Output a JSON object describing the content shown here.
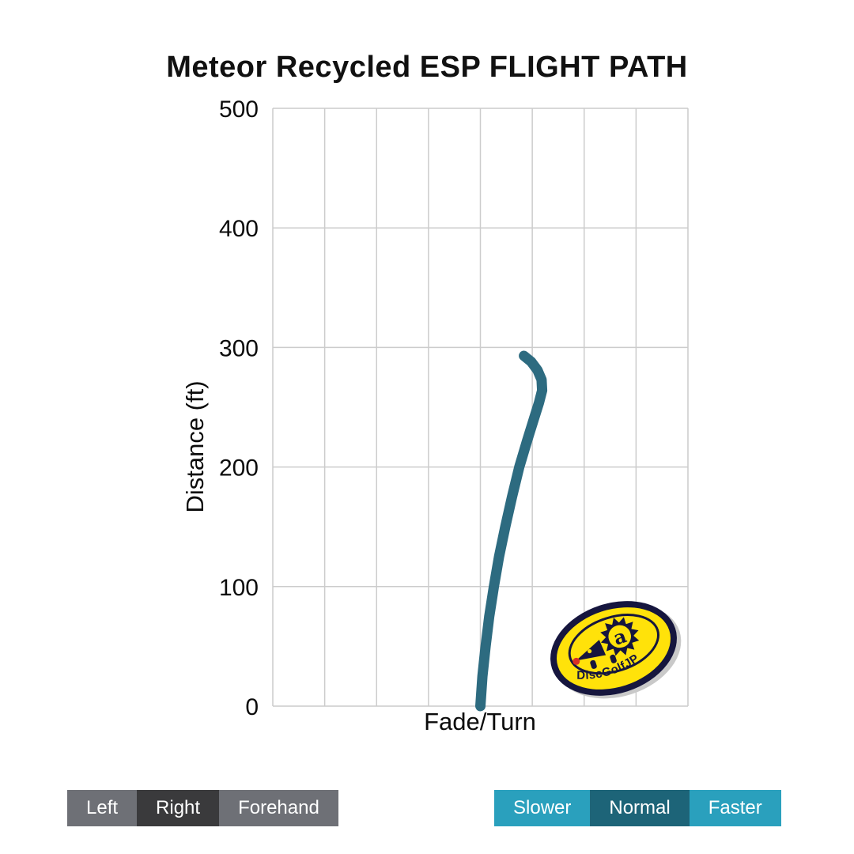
{
  "title": "Meteor Recycled ESP FLIGHT PATH",
  "chart_data": {
    "type": "line",
    "title": "Meteor Recycled ESP FLIGHT PATH",
    "xlabel": "Fade/Turn",
    "ylabel": "Distance (ft)",
    "xlim": [
      0,
      8
    ],
    "ylim": [
      0,
      500
    ],
    "yticks": [
      0,
      100,
      200,
      300,
      400,
      500
    ],
    "x_grid_step": 1,
    "grid": true,
    "legend_position": "none",
    "series": [
      {
        "name": "Meteor Recycled ESP flight path (Right hand, Normal speed)",
        "color": "#2d6b80",
        "points": [
          [
            4.0,
            0
          ],
          [
            4.04,
            25
          ],
          [
            4.1,
            50
          ],
          [
            4.17,
            75
          ],
          [
            4.26,
            100
          ],
          [
            4.36,
            125
          ],
          [
            4.48,
            150
          ],
          [
            4.61,
            175
          ],
          [
            4.75,
            200
          ],
          [
            4.9,
            222
          ],
          [
            5.03,
            240
          ],
          [
            5.13,
            254
          ],
          [
            5.19,
            264
          ],
          [
            5.18,
            273
          ],
          [
            5.1,
            281
          ],
          [
            4.98,
            288
          ],
          [
            4.84,
            293
          ]
        ]
      }
    ]
  },
  "logo": {
    "text": "DiscGolfJP",
    "letter": "a"
  },
  "controls": {
    "hand": [
      {
        "label": "Left",
        "selected": false
      },
      {
        "label": "Right",
        "selected": true
      },
      {
        "label": "Forehand",
        "selected": false
      }
    ],
    "speed": [
      {
        "label": "Slower",
        "selected": false
      },
      {
        "label": "Normal",
        "selected": true
      },
      {
        "label": "Faster",
        "selected": false
      }
    ]
  },
  "colors": {
    "path": "#2d6b80",
    "grid": "#cccccc",
    "hand_btn": "#6e7076",
    "hand_btn_selected": "#3a3a3c",
    "speed_btn": "#2aa0bd",
    "speed_btn_selected": "#1d6478",
    "logo_navy": "#16163e",
    "logo_yellow": "#ffe20a",
    "logo_nose": "#d93025"
  }
}
